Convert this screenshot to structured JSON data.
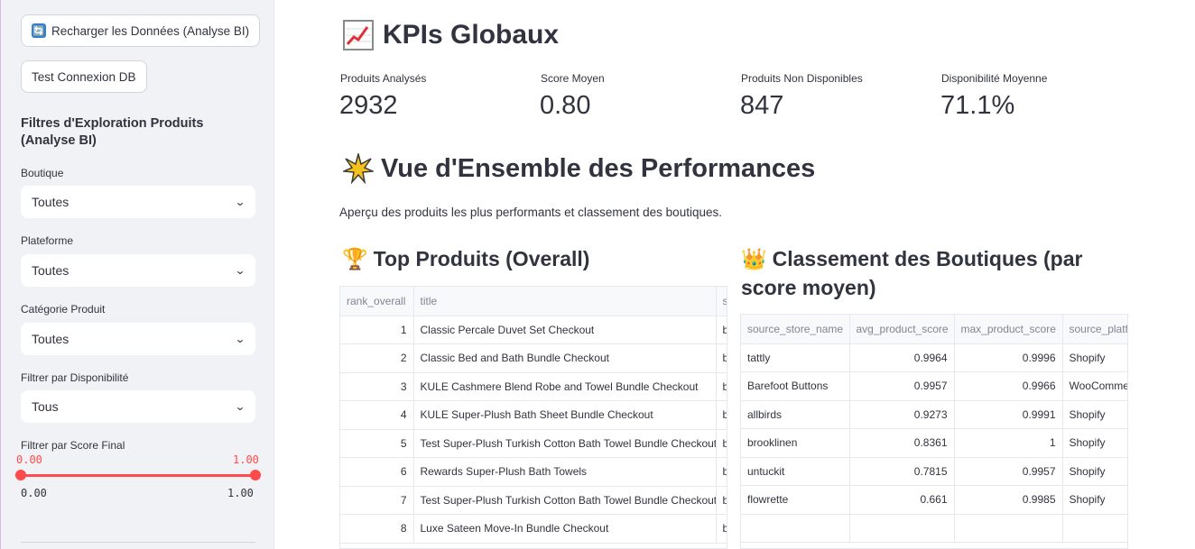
{
  "sidebar": {
    "reload_button": "Recharger les Données (Analyse BI)",
    "test_button": "Test Connexion DB",
    "filters_heading": "Filtres d'Exploration Produits (Analyse BI)",
    "filters": [
      {
        "label": "Boutique",
        "value": "Toutes"
      },
      {
        "label": "Plateforme",
        "value": "Toutes"
      },
      {
        "label": "Catégorie Produit",
        "value": "Toutes"
      },
      {
        "label": "Filtrer par Disponibilité",
        "value": "Tous"
      }
    ],
    "score_slider": {
      "label": "Filtrer par Score Final",
      "low": "0.00",
      "high": "1.00",
      "min": "0.00",
      "max": "1.00",
      "low_fraction": 0,
      "high_fraction": 1
    }
  },
  "main": {
    "kpi_title": "KPIs Globaux",
    "kpis": [
      {
        "label": "Produits Analysés",
        "value": "2932"
      },
      {
        "label": "Score Moyen",
        "value": "0.80"
      },
      {
        "label": "Produits Non Disponibles",
        "value": "847"
      },
      {
        "label": "Disponibilité Moyenne",
        "value": "71.1%"
      }
    ],
    "perf_title": "Vue d'Ensemble des Performances",
    "perf_caption": "Aperçu des produits les plus performants et classement des boutiques.",
    "top_products": {
      "title": "Top Produits (Overall)",
      "columns": [
        "rank_overall",
        "title",
        "s"
      ],
      "rows": [
        [
          "1",
          "Classic Percale Duvet Set Checkout",
          "b"
        ],
        [
          "2",
          "Classic Bed and Bath Bundle Checkout",
          "b"
        ],
        [
          "3",
          "KULE Cashmere Blend Robe and Towel Bundle Checkout",
          "b"
        ],
        [
          "4",
          "KULE Super-Plush Bath Sheet Bundle Checkout",
          "b"
        ],
        [
          "5",
          "Test Super-Plush Turkish Cotton Bath Towel Bundle Checkout",
          "b"
        ],
        [
          "6",
          "Rewards Super-Plush Bath Towels",
          "b"
        ],
        [
          "7",
          "Test Super-Plush Turkish Cotton Bath Towel Bundle Checkout",
          "b"
        ],
        [
          "8",
          "Luxe Sateen Move-In Bundle Checkout",
          "b"
        ]
      ]
    },
    "store_ranking": {
      "title": "Classement des Boutiques (par score moyen)",
      "columns": [
        "source_store_name",
        "avg_product_score",
        "max_product_score",
        "source_platf"
      ],
      "rows": [
        [
          "tattly",
          "0.9964",
          "0.9996",
          "Shopify"
        ],
        [
          "Barefoot Buttons",
          "0.9957",
          "0.9966",
          "WooComme"
        ],
        [
          "allbirds",
          "0.9273",
          "0.9991",
          "Shopify"
        ],
        [
          "brooklinen",
          "0.8361",
          "1",
          "Shopify"
        ],
        [
          "untuckit",
          "0.7815",
          "0.9957",
          "Shopify"
        ],
        [
          "flowrette",
          "0.661",
          "0.9985",
          "Shopify"
        ],
        [
          "",
          "",
          "",
          ""
        ]
      ]
    }
  }
}
